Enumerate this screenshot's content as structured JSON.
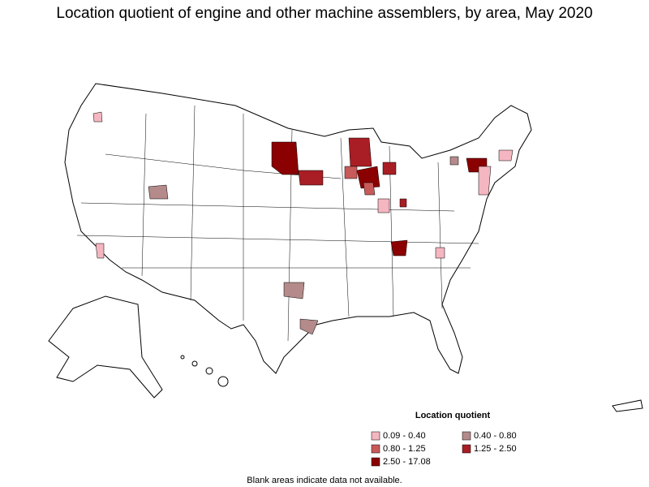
{
  "title": "Location quotient of engine and other machine assemblers, by area, May 2020",
  "legend": {
    "title": "Location quotient",
    "items": [
      {
        "label": "0.09 - 0.40",
        "color": "#f4b6c0"
      },
      {
        "label": "0.40 - 0.80",
        "color": "#b48a8a"
      },
      {
        "label": "0.80 - 1.25",
        "color": "#c85a5a"
      },
      {
        "label": "1.25 - 2.50",
        "color": "#a81e24"
      },
      {
        "label": "2.50 - 17.08",
        "color": "#8b0000"
      }
    ]
  },
  "note": "Blank areas indicate data not available."
}
